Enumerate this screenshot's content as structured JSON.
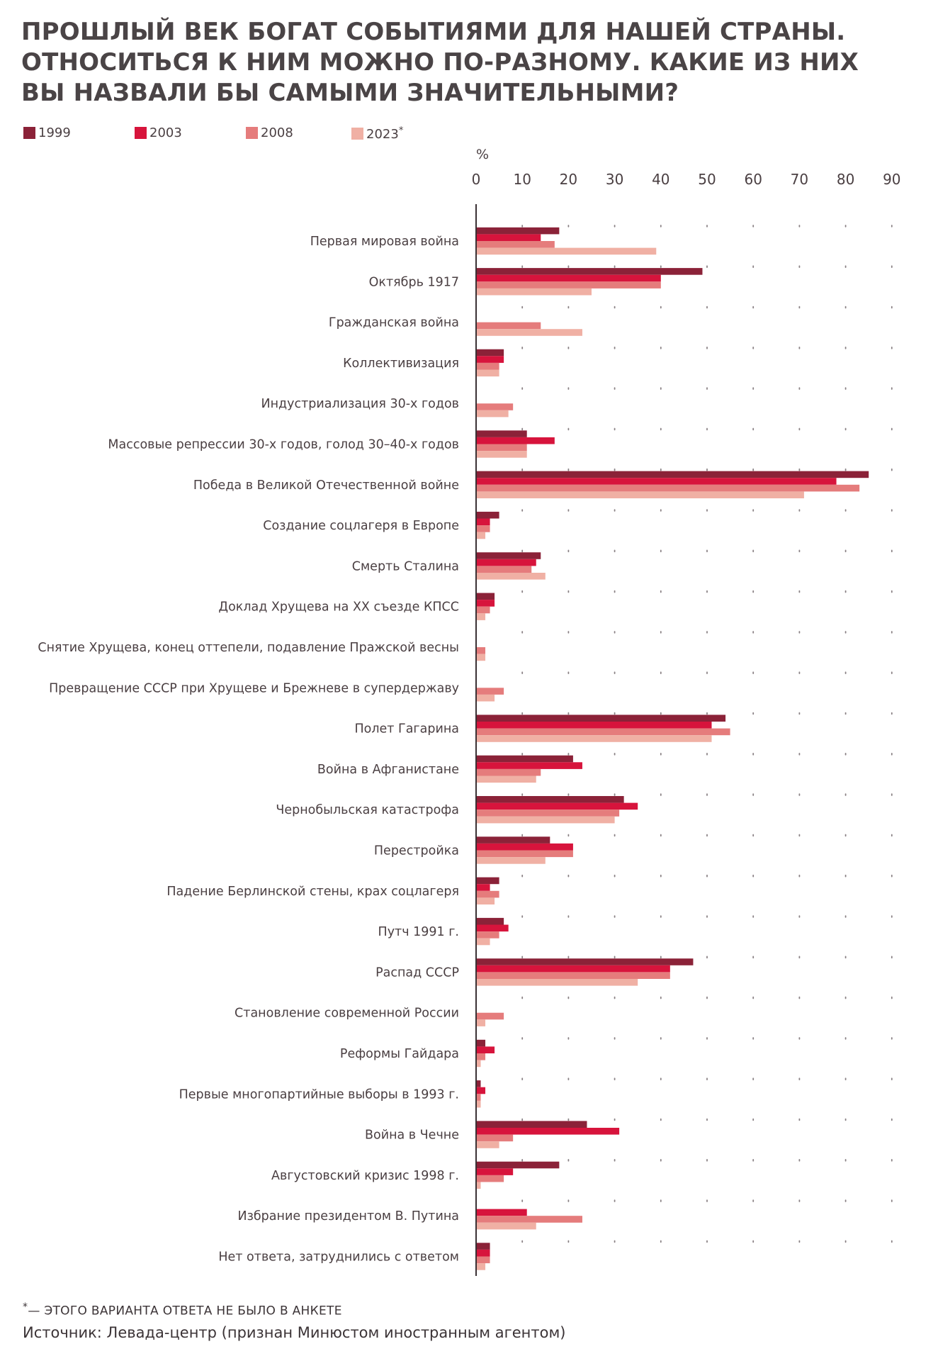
{
  "title_lines": [
    "Прошлый век богат событиями для нашей страны.",
    "Относиться к ним можно по-разному. Какие из них",
    "вы назвали бы самыми значительными?"
  ],
  "legend": [
    {
      "label": "1999",
      "color": "#8b2238",
      "star": ""
    },
    {
      "label": "2003",
      "color": "#d7143c",
      "star": ""
    },
    {
      "label": "2008",
      "color": "#e57c7c",
      "star": ""
    },
    {
      "label": "2023",
      "color": "#f0b0a4",
      "star": "*"
    }
  ],
  "footnote": {
    "star": "*",
    "text": "— этого варианта ответа не было в анкете"
  },
  "source": "Источник: Левада-центр  (признан Минюстом иностранным агентом)",
  "chart_data": {
    "type": "bar",
    "orientation": "horizontal",
    "unit": "%",
    "xlim": [
      0,
      90
    ],
    "ticks": [
      0,
      10,
      20,
      30,
      40,
      50,
      60,
      70,
      80,
      90
    ],
    "grid": "dotted",
    "legend_position": "top-left",
    "categories": [
      "Первая мировая война",
      "Октябрь 1917",
      "Гражданская война",
      "Коллективизация",
      "Индустриализация 30-х годов",
      "Массовые репрессии 30-х годов, голод 30–40-х годов",
      "Победа в Великой Отечественной войне",
      "Создание соцлагеря в Европе",
      "Смерть Сталина",
      "Доклад Хрущева на XX съезде КПСС",
      "Снятие Хрущева, конец оттепели, подавление Пражской весны",
      "Превращение СССР при Хрущеве и Брежневе в супердержаву",
      "Полет Гагарина",
      "Война в Афганистане",
      "Чернобыльская катастрофа",
      "Перестройка",
      "Падение Берлинской стены, крах соцлагеря",
      "Путч 1991 г.",
      "Распад СССР",
      "Становление современной России",
      "Реформы Гайдара",
      "Первые многопартийные выборы в 1993 г.",
      "Война в Чечне",
      "Августовский кризис 1998 г.",
      "Избрание президентом В. Путина",
      "Нет ответа, затруднились с ответом"
    ],
    "series": [
      {
        "name": "1999",
        "color": "#8b2238",
        "values": [
          18,
          49,
          null,
          6,
          null,
          11,
          85,
          5,
          14,
          4,
          null,
          null,
          54,
          21,
          32,
          16,
          5,
          6,
          47,
          null,
          2,
          1,
          24,
          18,
          null,
          3
        ]
      },
      {
        "name": "2003",
        "color": "#d7143c",
        "values": [
          14,
          40,
          null,
          6,
          null,
          17,
          78,
          3,
          13,
          4,
          null,
          null,
          51,
          23,
          35,
          21,
          3,
          7,
          42,
          null,
          4,
          2,
          31,
          8,
          11,
          3
        ]
      },
      {
        "name": "2008",
        "color": "#e57c7c",
        "values": [
          17,
          40,
          14,
          5,
          8,
          11,
          83,
          3,
          12,
          3,
          2,
          6,
          55,
          14,
          31,
          21,
          5,
          5,
          42,
          6,
          2,
          1,
          8,
          6,
          23,
          3
        ]
      },
      {
        "name": "2023",
        "color": "#f0b0a4",
        "values": [
          39,
          25,
          23,
          5,
          7,
          11,
          71,
          2,
          15,
          2,
          2,
          4,
          51,
          13,
          30,
          15,
          4,
          3,
          35,
          2,
          1,
          1,
          5,
          1,
          13,
          2
        ]
      }
    ]
  }
}
